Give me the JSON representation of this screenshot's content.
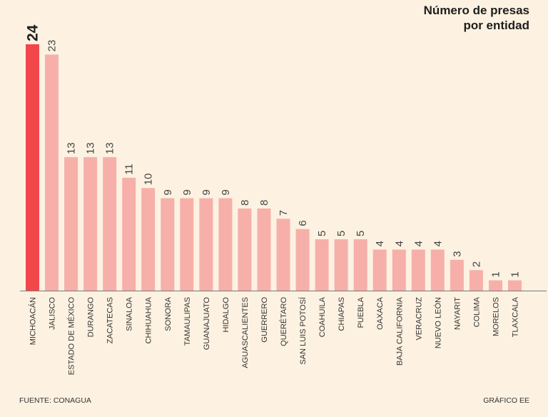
{
  "title": {
    "line1": "Número de presas",
    "line2": "por entidad"
  },
  "footer": {
    "source": "FUENTE: CONAGUA",
    "credit": "GRÁFICO EE"
  },
  "colors": {
    "background": "#fdf2e1",
    "highlight": "#f2474a",
    "bar": "#f6b0a9",
    "axis": "#777777",
    "text": "#333333"
  },
  "chart_data": {
    "type": "bar",
    "title": "Número de presas por entidad",
    "xlabel": "",
    "ylabel": "",
    "ylim": [
      0,
      24
    ],
    "highlight_index": 0,
    "categories": [
      "MICHOACÁN",
      "JALISCO",
      "ESTADO DE MÉXICO",
      "DURANGO",
      "ZACATECAS",
      "SINALOA",
      "CHIHUAHUA",
      "SONORA",
      "TAMAULIPAS",
      "GUANAJUATO",
      "HIDALGO",
      "AGUASCALIENTES",
      "GUERRERO",
      "QUERÉTARO",
      "SAN LUIS POTOSÍ",
      "COAHUILA",
      "CHIAPAS",
      "PUEBLA",
      "OAXACA",
      "BAJA CALIFORNIA",
      "VERACRUZ",
      "NUEVO LEÓN",
      "NAYARIT",
      "COLIMA",
      "MORELOS",
      "TLAXCALA"
    ],
    "values": [
      24,
      23,
      13,
      13,
      13,
      11,
      10,
      9,
      9,
      9,
      9,
      8,
      8,
      7,
      6,
      5,
      5,
      5,
      4,
      4,
      4,
      4,
      3,
      2,
      1,
      1
    ]
  }
}
